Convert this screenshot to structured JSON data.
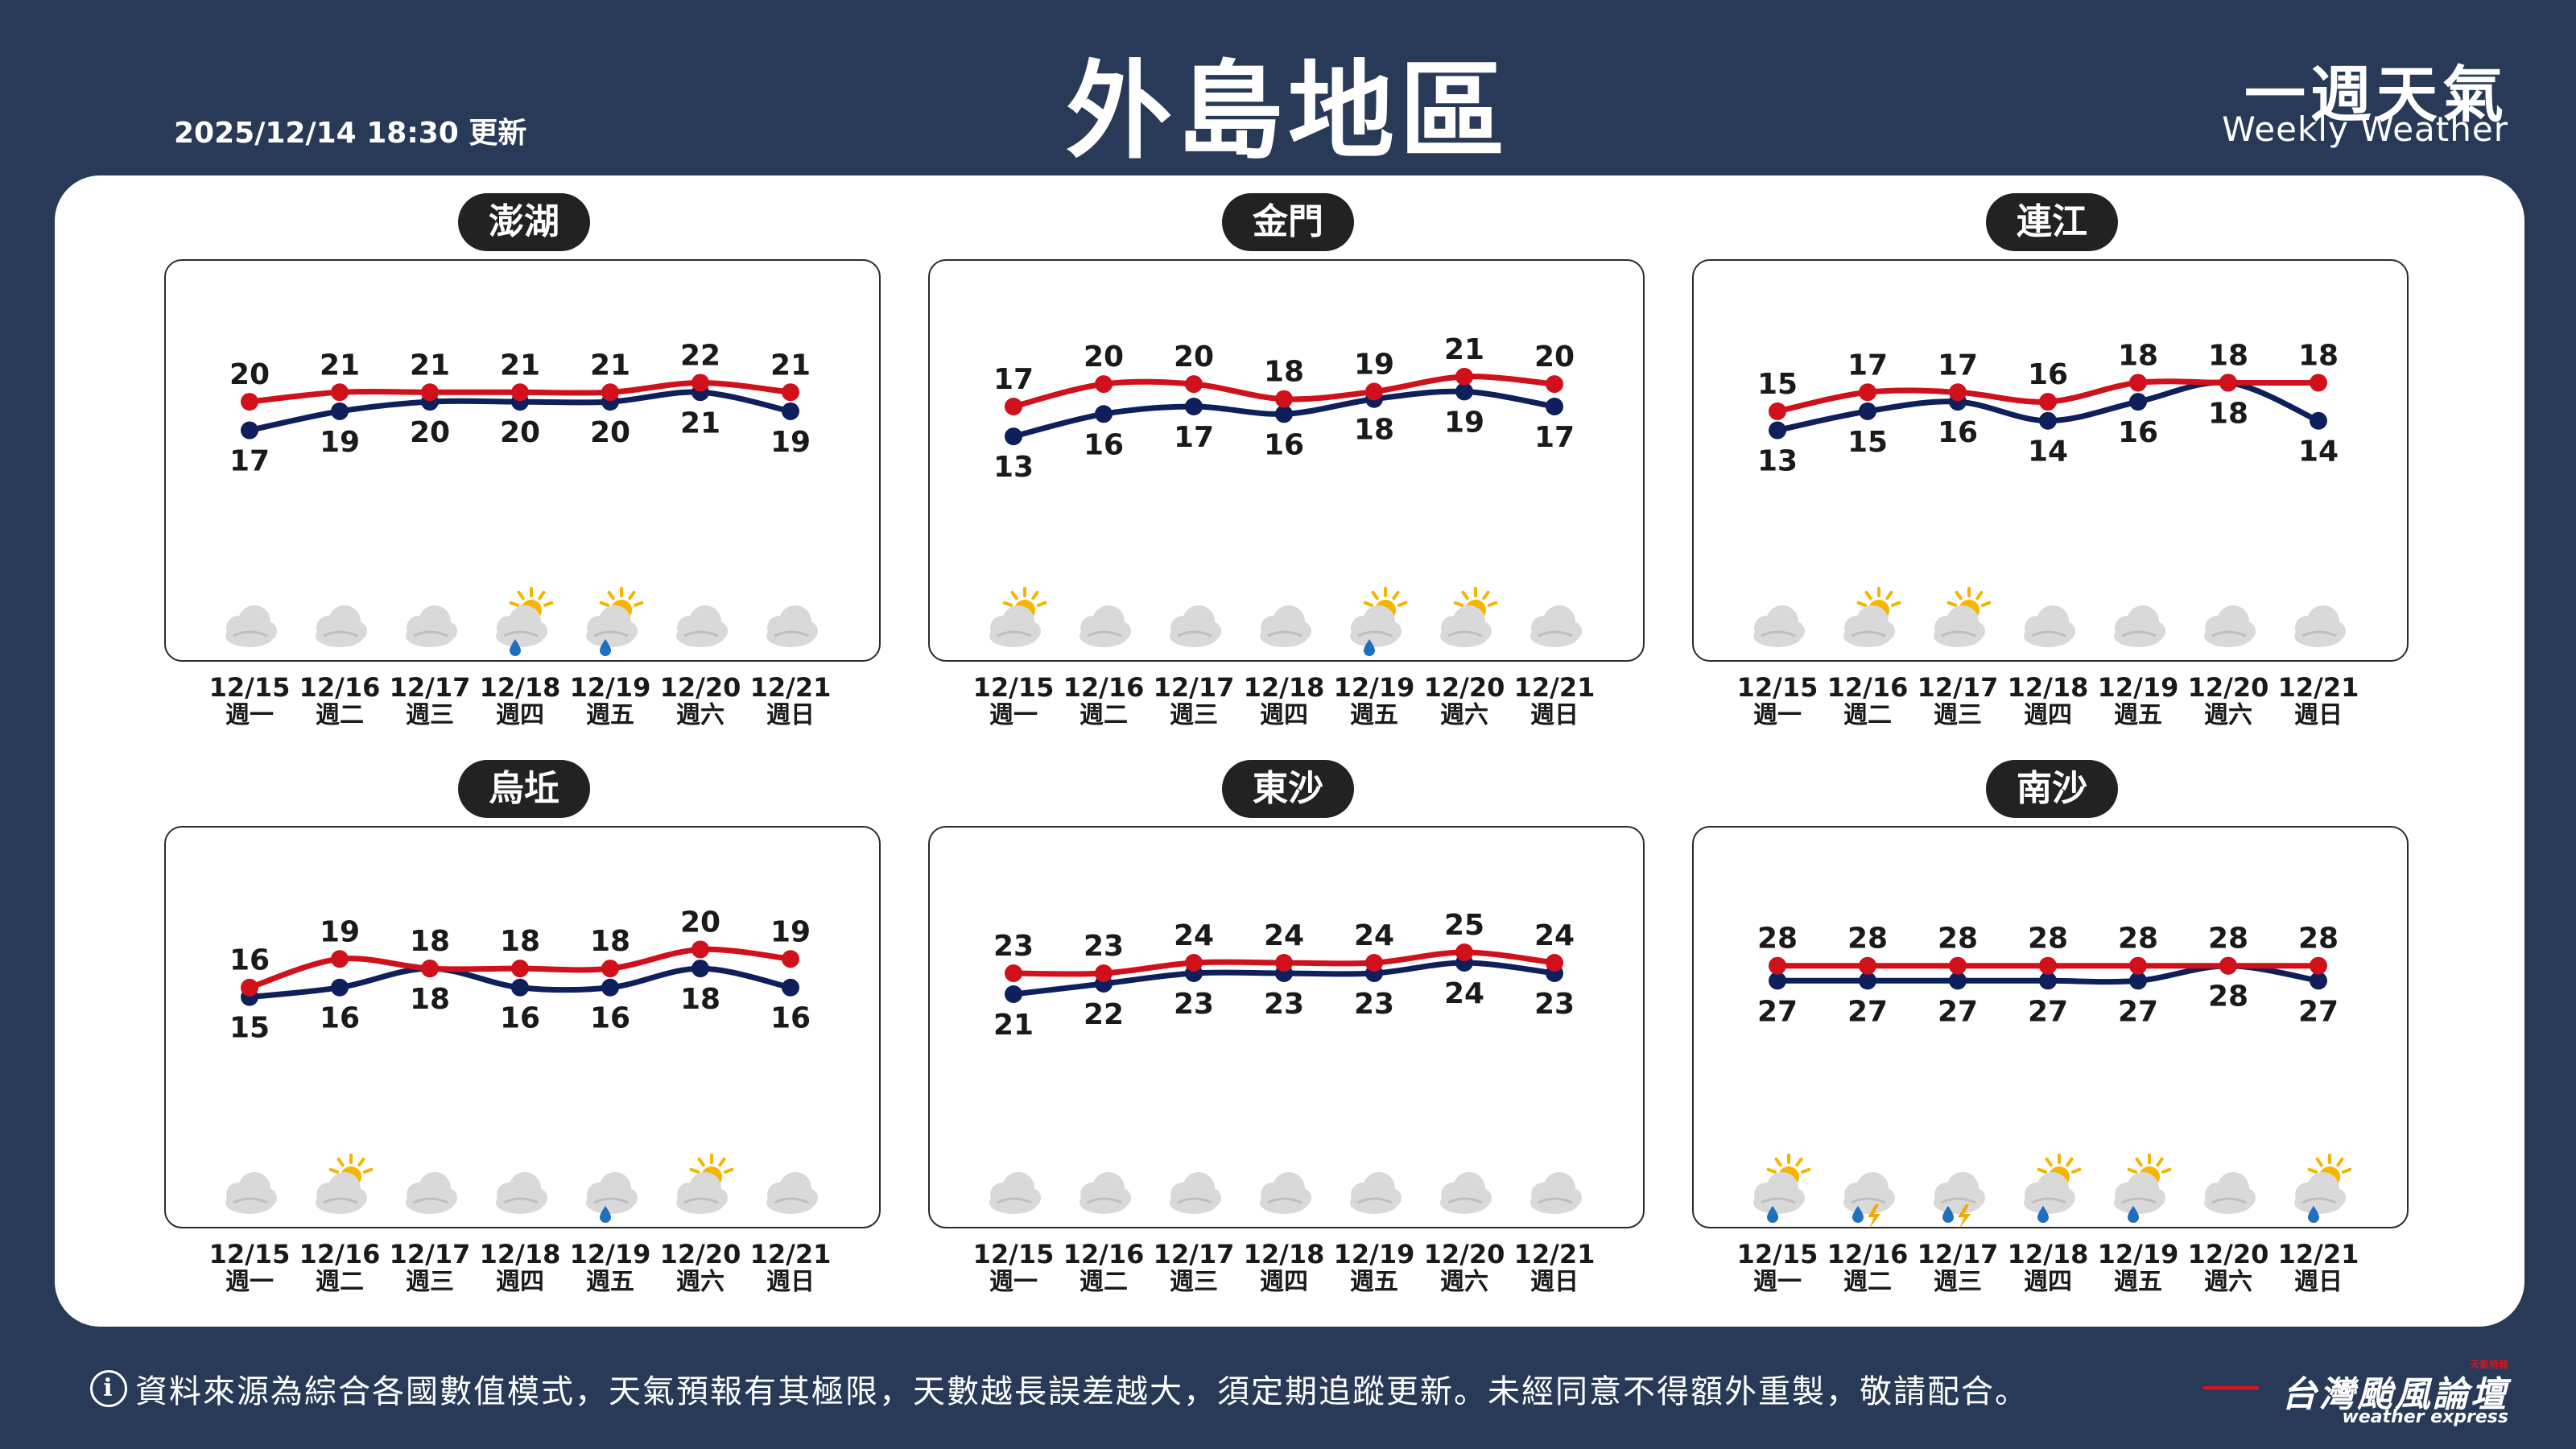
{
  "header": {
    "timestamp": "2025/12/14 18:30 更新",
    "title": "外島地區",
    "brand_cn": "一週天氣",
    "brand_en": "Weekly Weather"
  },
  "days": [
    {
      "date": "12/15",
      "weekday": "週一"
    },
    {
      "date": "12/16",
      "weekday": "週二"
    },
    {
      "date": "12/17",
      "weekday": "週三"
    },
    {
      "date": "12/18",
      "weekday": "週四"
    },
    {
      "date": "12/19",
      "weekday": "週五"
    },
    {
      "date": "12/20",
      "weekday": "週六"
    },
    {
      "date": "12/21",
      "weekday": "週日"
    }
  ],
  "colors": {
    "high": "#d0101b",
    "low": "#0e1f5c",
    "background": "#283a57"
  },
  "chart_data": [
    {
      "type": "line",
      "title": "澎湖",
      "categories": [
        "12/15",
        "12/16",
        "12/17",
        "12/18",
        "12/19",
        "12/20",
        "12/21"
      ],
      "series": [
        {
          "values": [
            20,
            21,
            21,
            21,
            21,
            22,
            21
          ]
        },
        {
          "values": [
            17,
            19,
            20,
            20,
            20,
            21,
            19
          ]
        }
      ],
      "icons": [
        "cloudy",
        "cloudy",
        "cloudy",
        "partly-cloudy-rain",
        "partly-cloudy-rain",
        "cloudy",
        "cloudy"
      ]
    },
    {
      "type": "line",
      "title": "金門",
      "categories": [
        "12/15",
        "12/16",
        "12/17",
        "12/18",
        "12/19",
        "12/20",
        "12/21"
      ],
      "series": [
        {
          "values": [
            17,
            20,
            20,
            18,
            19,
            21,
            20
          ]
        },
        {
          "values": [
            13,
            16,
            17,
            16,
            18,
            19,
            17
          ]
        }
      ],
      "icons": [
        "partly-cloudy",
        "cloudy",
        "cloudy",
        "cloudy",
        "partly-cloudy-rain",
        "partly-cloudy",
        "cloudy"
      ]
    },
    {
      "type": "line",
      "title": "連江",
      "categories": [
        "12/15",
        "12/16",
        "12/17",
        "12/18",
        "12/19",
        "12/20",
        "12/21"
      ],
      "series": [
        {
          "values": [
            15,
            17,
            17,
            16,
            18,
            18,
            18
          ]
        },
        {
          "values": [
            13,
            15,
            16,
            14,
            16,
            18,
            14
          ]
        }
      ],
      "icons": [
        "cloudy",
        "partly-cloudy",
        "partly-cloudy",
        "cloudy",
        "cloudy",
        "cloudy",
        "cloudy"
      ]
    },
    {
      "type": "line",
      "title": "烏坵",
      "categories": [
        "12/15",
        "12/16",
        "12/17",
        "12/18",
        "12/19",
        "12/20",
        "12/21"
      ],
      "series": [
        {
          "values": [
            16,
            19,
            18,
            18,
            18,
            20,
            19
          ]
        },
        {
          "values": [
            15,
            16,
            18,
            16,
            16,
            18,
            16
          ]
        }
      ],
      "icons": [
        "cloudy",
        "partly-cloudy",
        "cloudy",
        "cloudy",
        "cloudy-rain",
        "partly-cloudy",
        "cloudy"
      ]
    },
    {
      "type": "line",
      "title": "東沙",
      "categories": [
        "12/15",
        "12/16",
        "12/17",
        "12/18",
        "12/19",
        "12/20",
        "12/21"
      ],
      "series": [
        {
          "values": [
            23,
            23,
            24,
            24,
            24,
            25,
            24
          ]
        },
        {
          "values": [
            21,
            22,
            23,
            23,
            23,
            24,
            23
          ]
        }
      ],
      "icons": [
        "cloudy",
        "cloudy",
        "cloudy",
        "cloudy",
        "cloudy",
        "cloudy",
        "cloudy"
      ]
    },
    {
      "type": "line",
      "title": "南沙",
      "categories": [
        "12/15",
        "12/16",
        "12/17",
        "12/18",
        "12/19",
        "12/20",
        "12/21"
      ],
      "series": [
        {
          "values": [
            28,
            28,
            28,
            28,
            28,
            28,
            28
          ]
        },
        {
          "values": [
            27,
            27,
            27,
            27,
            27,
            28,
            27
          ]
        }
      ],
      "icons": [
        "partly-cloudy-rain",
        "thunderstorm",
        "thunderstorm",
        "partly-cloudy-rain",
        "partly-cloudy-rain",
        "cloudy",
        "partly-cloudy-rain"
      ]
    }
  ],
  "footer": {
    "info_icon": "i",
    "disclaimer": "資料來源為綜合各國數值模式，天氣預報有其極限，天數越長誤差越大，須定期追蹤更新。未經同意不得額外重製，敬請配合。",
    "logo_cn": "台灣颱風論壇",
    "logo_en": "weather express",
    "logo_tag": "天氣特報"
  }
}
